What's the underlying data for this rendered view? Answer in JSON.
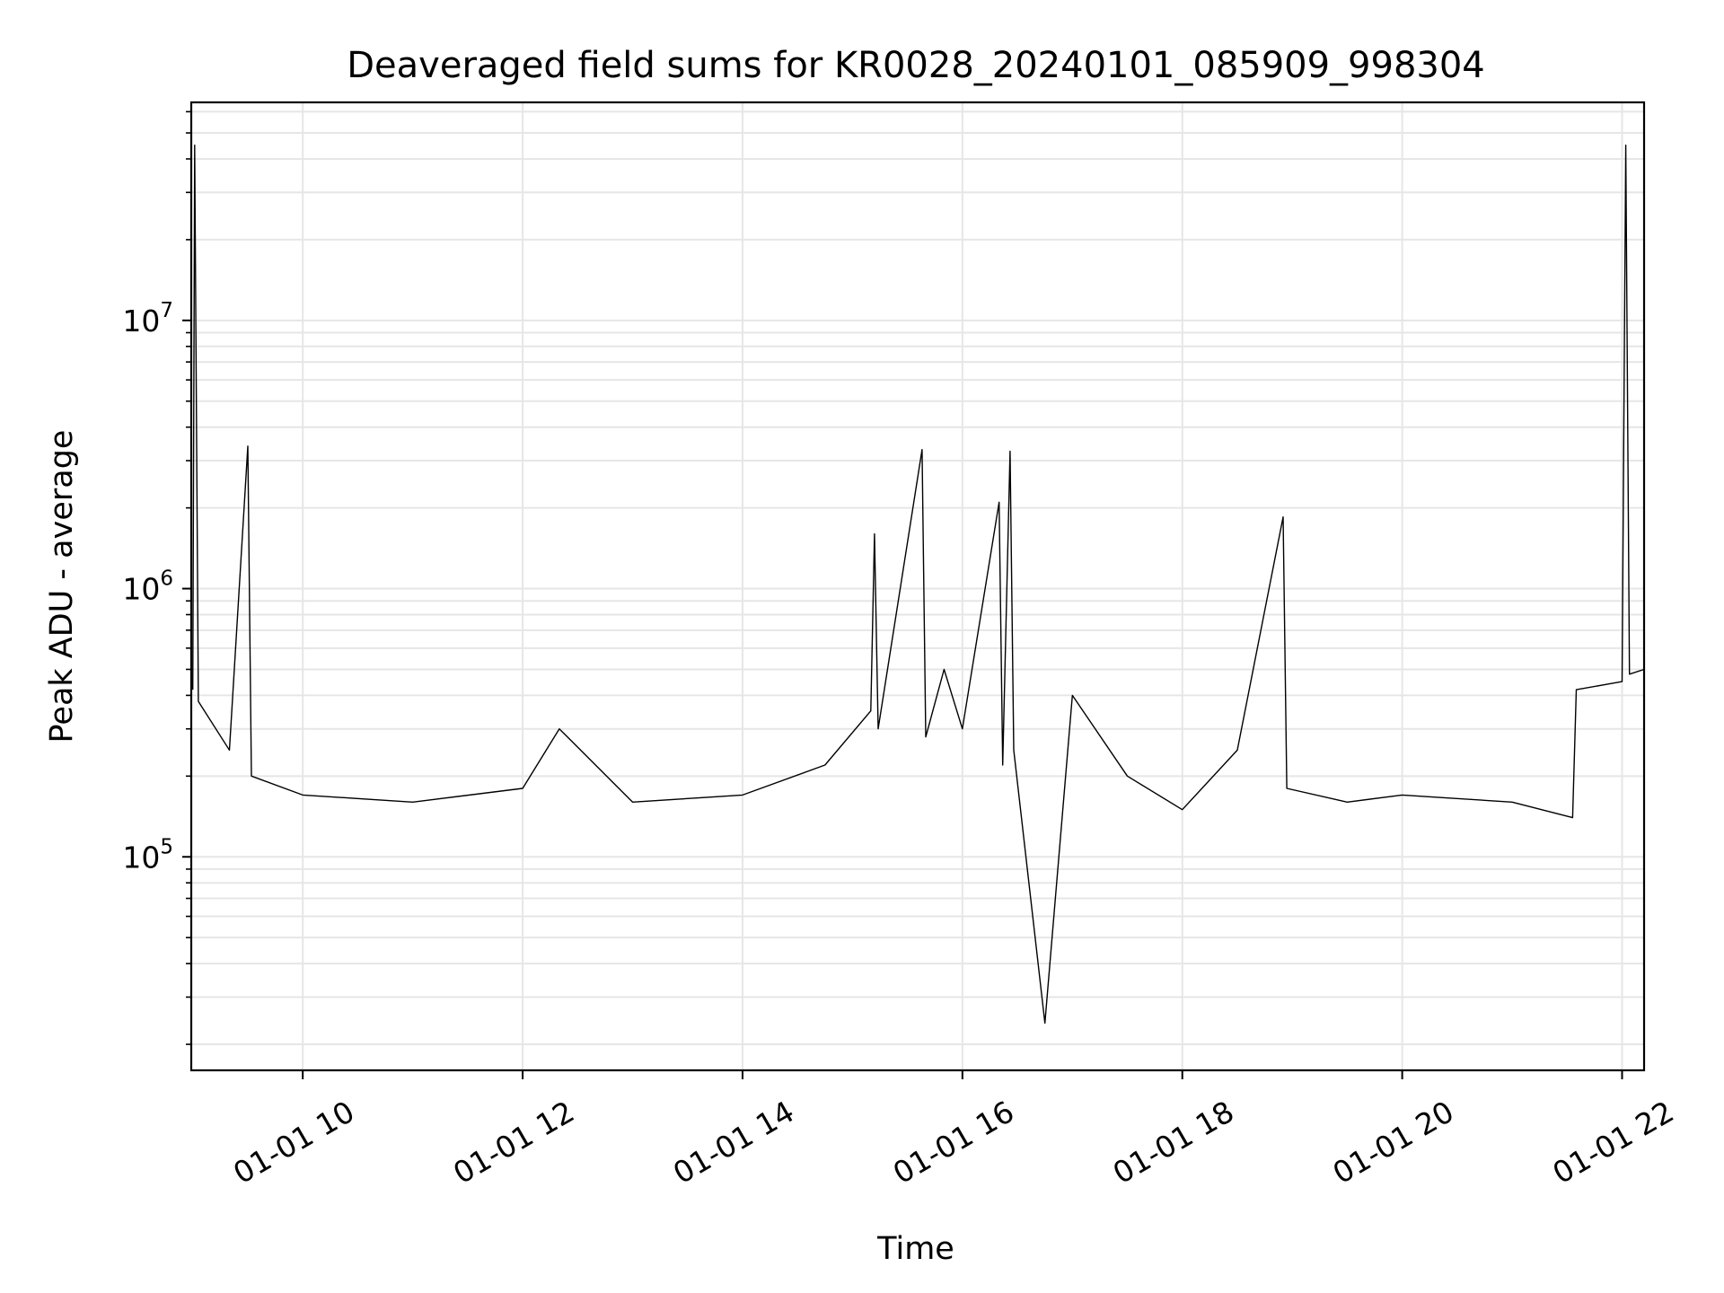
{
  "chart_data": {
    "type": "line",
    "title": "Deaveraged field sums for KR0028_20240101_085909_998304",
    "xlabel": "Time",
    "ylabel": "Peak ADU - average",
    "x_range": [
      "2024-01-01T08:59:09",
      "2024-01-01T22:12:00"
    ],
    "ylim": [
      16000,
      65000000
    ],
    "yscale": "log",
    "grid": true,
    "line_color": "#000000",
    "grid_color": "#e6e6e6",
    "x_ticks": [
      {
        "t": "2024-01-01T10:00:00",
        "label": "01-01 10"
      },
      {
        "t": "2024-01-01T12:00:00",
        "label": "01-01 12"
      },
      {
        "t": "2024-01-01T14:00:00",
        "label": "01-01 14"
      },
      {
        "t": "2024-01-01T16:00:00",
        "label": "01-01 16"
      },
      {
        "t": "2024-01-01T18:00:00",
        "label": "01-01 18"
      },
      {
        "t": "2024-01-01T20:00:00",
        "label": "01-01 20"
      },
      {
        "t": "2024-01-01T22:00:00",
        "label": "01-01 22"
      }
    ],
    "y_ticks": [
      {
        "value": 100000,
        "base": "10",
        "exp": "5"
      },
      {
        "value": 1000000,
        "base": "10",
        "exp": "6"
      },
      {
        "value": 10000000,
        "base": "10",
        "exp": "7"
      }
    ],
    "series": [
      {
        "points": [
          [
            "2024-01-01T09:00:00",
            420000
          ],
          [
            "2024-01-01T09:01:00",
            45000000
          ],
          [
            "2024-01-01T09:03:00",
            380000
          ],
          [
            "2024-01-01T09:20:00",
            250000
          ],
          [
            "2024-01-01T09:30:00",
            3400000
          ],
          [
            "2024-01-01T09:32:00",
            200000
          ],
          [
            "2024-01-01T10:00:00",
            170000
          ],
          [
            "2024-01-01T11:00:00",
            160000
          ],
          [
            "2024-01-01T12:00:00",
            180000
          ],
          [
            "2024-01-01T12:20:00",
            300000
          ],
          [
            "2024-01-01T13:00:00",
            160000
          ],
          [
            "2024-01-01T14:00:00",
            170000
          ],
          [
            "2024-01-01T14:45:00",
            220000
          ],
          [
            "2024-01-01T15:10:00",
            350000
          ],
          [
            "2024-01-01T15:12:00",
            1600000
          ],
          [
            "2024-01-01T15:14:00",
            300000
          ],
          [
            "2024-01-01T15:38:00",
            3300000
          ],
          [
            "2024-01-01T15:40:00",
            280000
          ],
          [
            "2024-01-01T15:50:00",
            500000
          ],
          [
            "2024-01-01T16:00:00",
            300000
          ],
          [
            "2024-01-01T16:20:00",
            2100000
          ],
          [
            "2024-01-01T16:22:00",
            220000
          ],
          [
            "2024-01-01T16:26:00",
            3250000
          ],
          [
            "2024-01-01T16:28:00",
            250000
          ],
          [
            "2024-01-01T16:45:00",
            24000
          ],
          [
            "2024-01-01T17:00:00",
            400000
          ],
          [
            "2024-01-01T17:30:00",
            200000
          ],
          [
            "2024-01-01T18:00:00",
            150000
          ],
          [
            "2024-01-01T18:30:00",
            250000
          ],
          [
            "2024-01-01T18:55:00",
            1850000
          ],
          [
            "2024-01-01T18:57:00",
            180000
          ],
          [
            "2024-01-01T19:30:00",
            160000
          ],
          [
            "2024-01-01T20:00:00",
            170000
          ],
          [
            "2024-01-01T21:00:00",
            160000
          ],
          [
            "2024-01-01T21:33:00",
            140000
          ],
          [
            "2024-01-01T21:35:00",
            420000
          ],
          [
            "2024-01-01T22:00:00",
            450000
          ],
          [
            "2024-01-01T22:02:00",
            45000000
          ],
          [
            "2024-01-01T22:04:00",
            480000
          ],
          [
            "2024-01-01T22:12:00",
            500000
          ]
        ]
      }
    ]
  }
}
